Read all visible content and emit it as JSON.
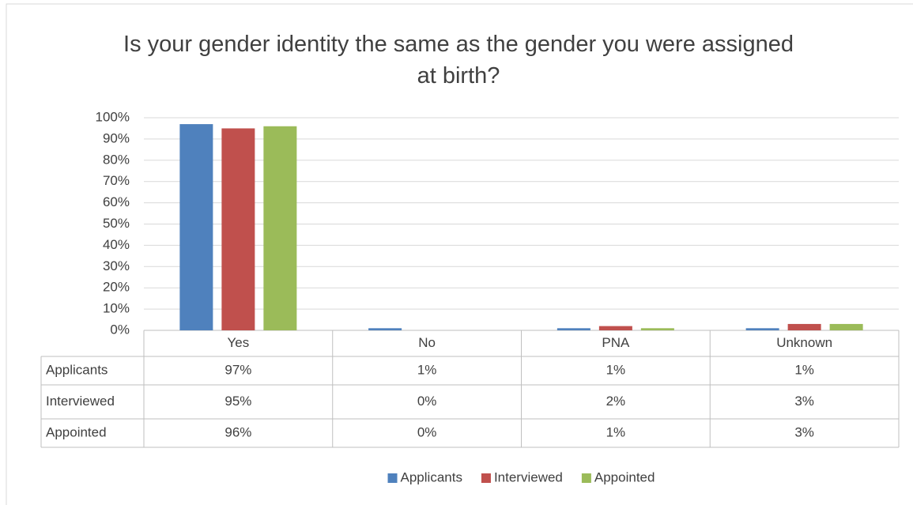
{
  "chart_data": {
    "type": "bar",
    "title": "Is your gender identity the same as the gender you were assigned at birth?",
    "categories": [
      "Yes",
      "No",
      "PNA",
      "Unknown"
    ],
    "series": [
      {
        "name": "Applicants",
        "color": "#4f81bd",
        "values": [
          97,
          1,
          1,
          1
        ],
        "value_labels": [
          "97%",
          "1%",
          "1%",
          "1%"
        ]
      },
      {
        "name": "Interviewed",
        "color": "#c0504d",
        "values": [
          95,
          0,
          2,
          3
        ],
        "value_labels": [
          "95%",
          "0%",
          "2%",
          "3%"
        ]
      },
      {
        "name": "Appointed",
        "color": "#9bbb59",
        "values": [
          96,
          0,
          1,
          3
        ],
        "value_labels": [
          "96%",
          "0%",
          "1%",
          "3%"
        ]
      }
    ],
    "ylim": [
      0,
      100
    ],
    "yticks": [
      {
        "value": 0,
        "label": "0%"
      },
      {
        "value": 10,
        "label": "10%"
      },
      {
        "value": 20,
        "label": "20%"
      },
      {
        "value": 30,
        "label": "30%"
      },
      {
        "value": 40,
        "label": "40%"
      },
      {
        "value": 50,
        "label": "50%"
      },
      {
        "value": 60,
        "label": "60%"
      },
      {
        "value": 70,
        "label": "70%"
      },
      {
        "value": 80,
        "label": "80%"
      },
      {
        "value": 90,
        "label": "90%"
      },
      {
        "value": 100,
        "label": "100%"
      }
    ],
    "grid": true,
    "legend": "bottom"
  }
}
